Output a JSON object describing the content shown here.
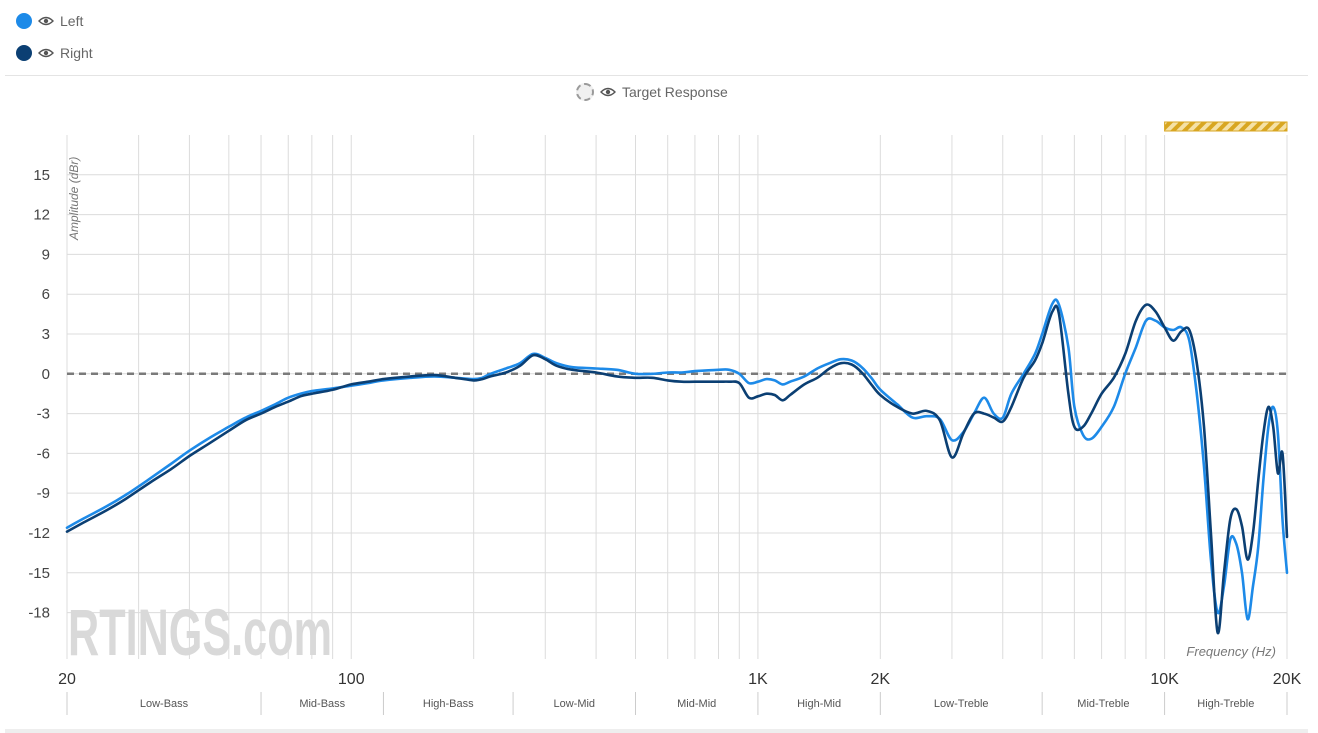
{
  "legend": {
    "left": {
      "label": "Left",
      "color": "#1d8ae8",
      "icon": "eye-icon"
    },
    "right": {
      "label": "Right",
      "color": "#0b3f73",
      "icon": "eye-icon"
    },
    "target": {
      "label": "Target Response",
      "icon": "eye-icon"
    }
  },
  "watermark": "RTINGS.com",
  "chart_data": {
    "type": "line",
    "xlabel": "Frequency (Hz)",
    "ylabel": "Amplitude (dBr)",
    "xscale": "log",
    "xlim": [
      20,
      20000
    ],
    "ylim": [
      -21.5,
      18
    ],
    "grid": true,
    "x_tick_labels": [
      {
        "value": 20,
        "label": "20"
      },
      {
        "value": 100,
        "label": "100"
      },
      {
        "value": 1000,
        "label": "1K"
      },
      {
        "value": 2000,
        "label": "2K"
      },
      {
        "value": 10000,
        "label": "10K"
      },
      {
        "value": 20000,
        "label": "20K"
      }
    ],
    "y_ticks": [
      15,
      12,
      9,
      6,
      3,
      0,
      -3,
      -6,
      -9,
      -12,
      -15,
      -18
    ],
    "target_line": 0,
    "bands": [
      {
        "label": "Low-Bass",
        "from": 20,
        "to": 60
      },
      {
        "label": "Mid-Bass",
        "from": 60,
        "to": 120
      },
      {
        "label": "High-Bass",
        "from": 120,
        "to": 250
      },
      {
        "label": "Low-Mid",
        "from": 250,
        "to": 500
      },
      {
        "label": "Mid-Mid",
        "from": 500,
        "to": 1000
      },
      {
        "label": "High-Mid",
        "from": 1000,
        "to": 2000
      },
      {
        "label": "Low-Treble",
        "from": 2000,
        "to": 5000
      },
      {
        "label": "Mid-Treble",
        "from": 5000,
        "to": 10000
      },
      {
        "label": "High-Treble",
        "from": 10000,
        "to": 20000
      }
    ],
    "highlight_range": {
      "from": 10000,
      "to": 20000
    },
    "series": [
      {
        "name": "Left",
        "color": "#1d8ae8",
        "points": [
          [
            20,
            -11.6
          ],
          [
            22,
            -10.9
          ],
          [
            25,
            -10
          ],
          [
            28,
            -9.1
          ],
          [
            32,
            -7.9
          ],
          [
            36,
            -6.8
          ],
          [
            40,
            -5.8
          ],
          [
            45,
            -4.8
          ],
          [
            50,
            -4
          ],
          [
            55,
            -3.3
          ],
          [
            60,
            -2.8
          ],
          [
            65,
            -2.3
          ],
          [
            70,
            -1.8
          ],
          [
            75,
            -1.5
          ],
          [
            80,
            -1.3
          ],
          [
            90,
            -1.1
          ],
          [
            100,
            -0.9
          ],
          [
            110,
            -0.7
          ],
          [
            120,
            -0.5
          ],
          [
            140,
            -0.3
          ],
          [
            160,
            -0.2
          ],
          [
            180,
            -0.3
          ],
          [
            200,
            -0.4
          ],
          [
            210,
            -0.3
          ],
          [
            220,
            0
          ],
          [
            240,
            0.4
          ],
          [
            260,
            0.8
          ],
          [
            280,
            1.5
          ],
          [
            300,
            1.2
          ],
          [
            320,
            0.8
          ],
          [
            350,
            0.5
          ],
          [
            400,
            0.4
          ],
          [
            450,
            0.3
          ],
          [
            500,
            0
          ],
          [
            550,
            0
          ],
          [
            600,
            0.1
          ],
          [
            650,
            0.1
          ],
          [
            700,
            0.2
          ],
          [
            800,
            0.3
          ],
          [
            850,
            0.3
          ],
          [
            900,
            0
          ],
          [
            950,
            -0.7
          ],
          [
            1000,
            -0.6
          ],
          [
            1050,
            -0.4
          ],
          [
            1100,
            -0.5
          ],
          [
            1150,
            -0.8
          ],
          [
            1200,
            -0.6
          ],
          [
            1300,
            -0.2
          ],
          [
            1400,
            0.4
          ],
          [
            1500,
            0.8
          ],
          [
            1600,
            1.1
          ],
          [
            1700,
            1
          ],
          [
            1800,
            0.5
          ],
          [
            1900,
            -0.3
          ],
          [
            2000,
            -1.2
          ],
          [
            2200,
            -2.3
          ],
          [
            2400,
            -3.3
          ],
          [
            2600,
            -3.2
          ],
          [
            2800,
            -3.4
          ],
          [
            3000,
            -5
          ],
          [
            3200,
            -4.4
          ],
          [
            3400,
            -3
          ],
          [
            3600,
            -1.8
          ],
          [
            3800,
            -3
          ],
          [
            4000,
            -3.3
          ],
          [
            4200,
            -1.5
          ],
          [
            4500,
            0
          ],
          [
            4800,
            1.5
          ],
          [
            5000,
            3
          ],
          [
            5300,
            5.3
          ],
          [
            5500,
            5.2
          ],
          [
            5800,
            2
          ],
          [
            6000,
            -2.5
          ],
          [
            6300,
            -4.6
          ],
          [
            6600,
            -4.9
          ],
          [
            7000,
            -4
          ],
          [
            7500,
            -2.5
          ],
          [
            8000,
            0
          ],
          [
            8500,
            2
          ],
          [
            9000,
            4
          ],
          [
            9500,
            4
          ],
          [
            10000,
            3.5
          ],
          [
            10500,
            3.3
          ],
          [
            11000,
            3.5
          ],
          [
            11500,
            2.5
          ],
          [
            12000,
            -1.5
          ],
          [
            12500,
            -7
          ],
          [
            13000,
            -14
          ],
          [
            13500,
            -18
          ],
          [
            14000,
            -16
          ],
          [
            14500,
            -12.5
          ],
          [
            15000,
            -12.8
          ],
          [
            15500,
            -15
          ],
          [
            16000,
            -18.5
          ],
          [
            16500,
            -16
          ],
          [
            17000,
            -13
          ],
          [
            17500,
            -8
          ],
          [
            18000,
            -4
          ],
          [
            18500,
            -2.5
          ],
          [
            19000,
            -4.5
          ],
          [
            19500,
            -11
          ],
          [
            20000,
            -15
          ]
        ]
      },
      {
        "name": "Right",
        "color": "#0b3f73",
        "points": [
          [
            20,
            -11.9
          ],
          [
            22,
            -11.2
          ],
          [
            25,
            -10.3
          ],
          [
            28,
            -9.4
          ],
          [
            32,
            -8.2
          ],
          [
            36,
            -7.2
          ],
          [
            40,
            -6.2
          ],
          [
            45,
            -5.2
          ],
          [
            50,
            -4.3
          ],
          [
            55,
            -3.5
          ],
          [
            60,
            -3
          ],
          [
            65,
            -2.5
          ],
          [
            70,
            -2.1
          ],
          [
            75,
            -1.7
          ],
          [
            80,
            -1.5
          ],
          [
            90,
            -1.2
          ],
          [
            100,
            -0.8
          ],
          [
            110,
            -0.6
          ],
          [
            120,
            -0.4
          ],
          [
            140,
            -0.2
          ],
          [
            160,
            -0.1
          ],
          [
            180,
            -0.3
          ],
          [
            200,
            -0.5
          ],
          [
            210,
            -0.4
          ],
          [
            220,
            -0.2
          ],
          [
            240,
            0.1
          ],
          [
            260,
            0.6
          ],
          [
            280,
            1.4
          ],
          [
            300,
            1.1
          ],
          [
            320,
            0.6
          ],
          [
            350,
            0.3
          ],
          [
            400,
            0.1
          ],
          [
            450,
            -0.2
          ],
          [
            500,
            -0.3
          ],
          [
            550,
            -0.3
          ],
          [
            600,
            -0.5
          ],
          [
            650,
            -0.6
          ],
          [
            700,
            -0.6
          ],
          [
            800,
            -0.6
          ],
          [
            850,
            -0.6
          ],
          [
            900,
            -0.7
          ],
          [
            950,
            -1.8
          ],
          [
            1000,
            -1.7
          ],
          [
            1050,
            -1.5
          ],
          [
            1100,
            -1.6
          ],
          [
            1150,
            -2
          ],
          [
            1200,
            -1.6
          ],
          [
            1300,
            -0.8
          ],
          [
            1400,
            -0.3
          ],
          [
            1500,
            0.4
          ],
          [
            1600,
            0.8
          ],
          [
            1700,
            0.7
          ],
          [
            1800,
            0.1
          ],
          [
            1900,
            -0.8
          ],
          [
            2000,
            -1.6
          ],
          [
            2200,
            -2.5
          ],
          [
            2400,
            -3
          ],
          [
            2600,
            -2.8
          ],
          [
            2800,
            -3.5
          ],
          [
            3000,
            -6.3
          ],
          [
            3200,
            -4.5
          ],
          [
            3400,
            -3
          ],
          [
            3600,
            -3
          ],
          [
            3800,
            -3.3
          ],
          [
            4000,
            -3.6
          ],
          [
            4200,
            -2.5
          ],
          [
            4500,
            -0.3
          ],
          [
            4800,
            1
          ],
          [
            5000,
            2.3
          ],
          [
            5300,
            4.7
          ],
          [
            5500,
            4.5
          ],
          [
            5800,
            -1.5
          ],
          [
            6000,
            -4
          ],
          [
            6300,
            -4
          ],
          [
            6600,
            -3
          ],
          [
            7000,
            -1.5
          ],
          [
            7500,
            -0.3
          ],
          [
            8000,
            1.5
          ],
          [
            8500,
            4
          ],
          [
            9000,
            5.2
          ],
          [
            9500,
            4.7
          ],
          [
            10000,
            3.5
          ],
          [
            10500,
            2.5
          ],
          [
            11000,
            3.2
          ],
          [
            11500,
            3.3
          ],
          [
            12000,
            0.8
          ],
          [
            12500,
            -4
          ],
          [
            13000,
            -12
          ],
          [
            13500,
            -19.5
          ],
          [
            14000,
            -15
          ],
          [
            14500,
            -11
          ],
          [
            15000,
            -10.2
          ],
          [
            15500,
            -11.5
          ],
          [
            16000,
            -14
          ],
          [
            16500,
            -12
          ],
          [
            17000,
            -8
          ],
          [
            17500,
            -4.5
          ],
          [
            18000,
            -2.5
          ],
          [
            18500,
            -4
          ],
          [
            19000,
            -7.5
          ],
          [
            19500,
            -6
          ],
          [
            20000,
            -12.3
          ]
        ]
      }
    ]
  }
}
